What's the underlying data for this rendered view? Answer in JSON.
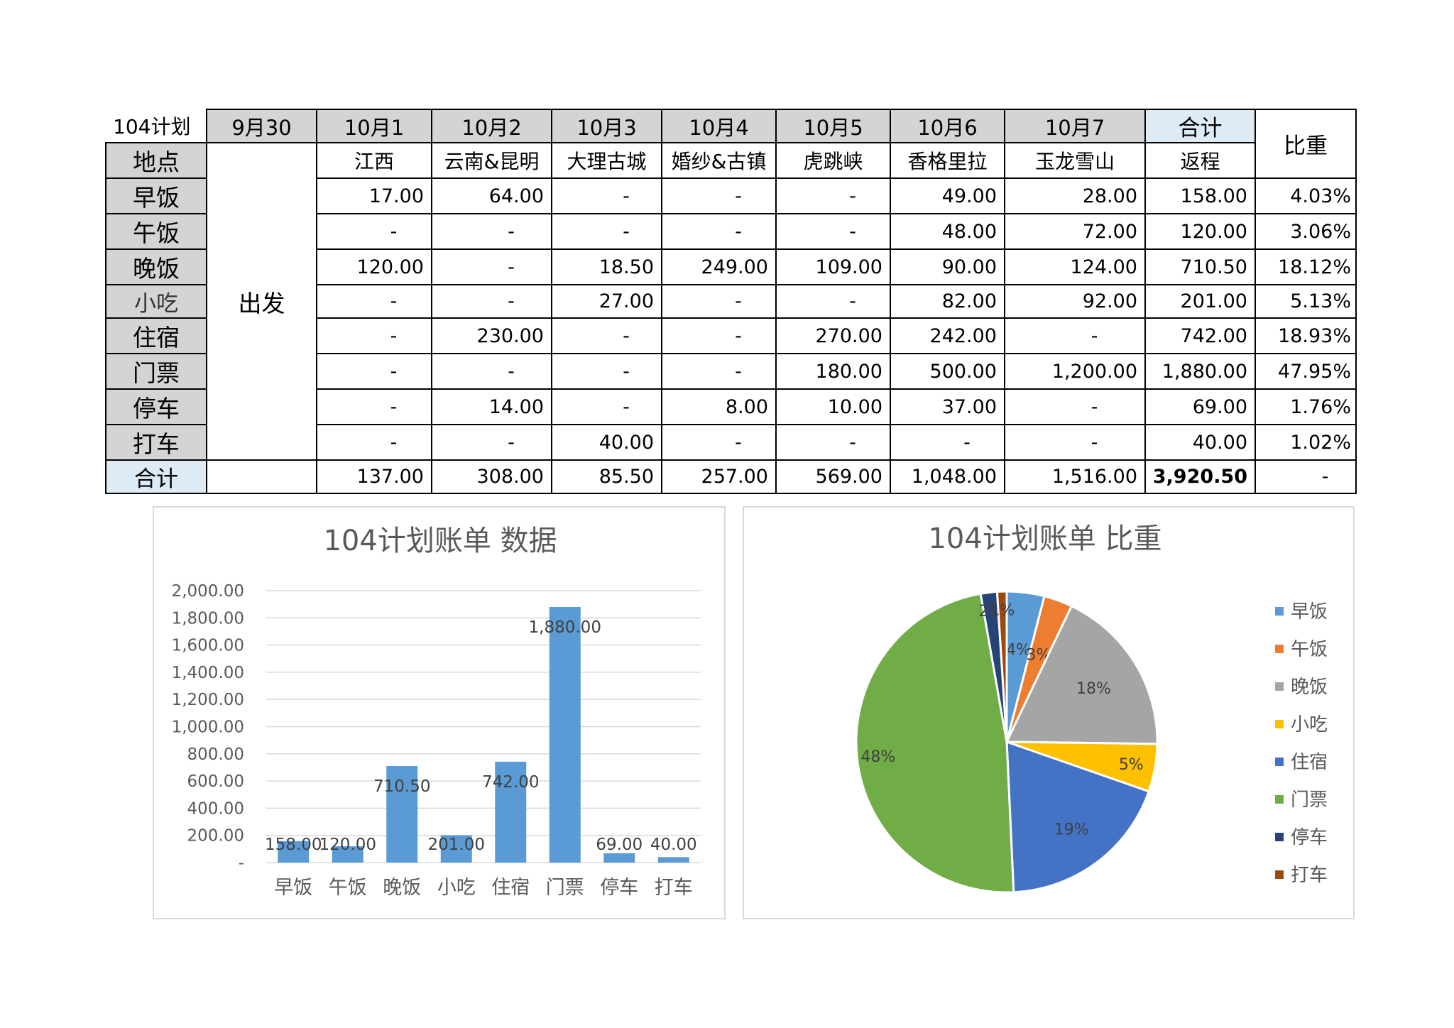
{
  "table": {
    "corner": "104计划",
    "dates": [
      "9月30",
      "10月1",
      "10月2",
      "10月3",
      "10月4",
      "10月5",
      "10月6",
      "10月7"
    ],
    "total_header": "合计",
    "ratio_header": "比重",
    "place_label": "地点",
    "depart": "出发",
    "places": [
      "江西",
      "云南&昆明",
      "大理古城",
      "婚纱&古镇",
      "虎跳峡",
      "香格里拉",
      "玉龙雪山"
    ],
    "return_label": "返程",
    "rows": [
      {
        "label": "早饭",
        "values": [
          "17.00",
          "64.00",
          "-",
          "-",
          "-",
          "49.00",
          "28.00"
        ],
        "total": "158.00",
        "ratio": "4.03%"
      },
      {
        "label": "午饭",
        "values": [
          "-",
          "-",
          "-",
          "-",
          "-",
          "48.00",
          "72.00"
        ],
        "total": "120.00",
        "ratio": "3.06%"
      },
      {
        "label": "晚饭",
        "values": [
          "120.00",
          "-",
          "18.50",
          "249.00",
          "109.00",
          "90.00",
          "124.00"
        ],
        "total": "710.50",
        "ratio": "18.12%"
      },
      {
        "label": "小吃",
        "values": [
          "-",
          "-",
          "27.00",
          "-",
          "-",
          "82.00",
          "92.00"
        ],
        "total": "201.00",
        "ratio": "5.13%"
      },
      {
        "label": "住宿",
        "values": [
          "-",
          "230.00",
          "-",
          "-",
          "270.00",
          "242.00",
          "-"
        ],
        "total": "742.00",
        "ratio": "18.93%"
      },
      {
        "label": "门票",
        "values": [
          "-",
          "-",
          "-",
          "-",
          "180.00",
          "500.00",
          "1,200.00"
        ],
        "total": "1,880.00",
        "ratio": "47.95%"
      },
      {
        "label": "停车",
        "values": [
          "-",
          "14.00",
          "-",
          "8.00",
          "10.00",
          "37.00",
          "-"
        ],
        "total": "69.00",
        "ratio": "1.76%"
      },
      {
        "label": "打车",
        "values": [
          "-",
          "-",
          "40.00",
          "-",
          "-",
          "-",
          "-"
        ],
        "total": "40.00",
        "ratio": "1.02%"
      }
    ],
    "totals_row": {
      "label": "合计",
      "values": [
        "137.00",
        "308.00",
        "85.50",
        "257.00",
        "569.00",
        "1,048.00",
        "1,516.00"
      ],
      "total": "3,920.50",
      "ratio": "-"
    }
  },
  "chart_data": [
    {
      "type": "bar",
      "title": "104计划账单 数据",
      "categories": [
        "早饭",
        "午饭",
        "晚饭",
        "小吃",
        "住宿",
        "门票",
        "停车",
        "打车"
      ],
      "values": [
        158.0,
        120.0,
        710.5,
        201.0,
        742.0,
        1880.0,
        69.0,
        40.0
      ],
      "value_labels": [
        "158.00",
        "120.00",
        "710.50",
        "201.00",
        "742.00",
        "1,880.00",
        "69.00",
        "40.00"
      ],
      "ylim": [
        0,
        2000
      ],
      "yticks": [
        "-",
        "200.00",
        "400.00",
        "600.00",
        "800.00",
        "1,000.00",
        "1,200.00",
        "1,400.00",
        "1,600.00",
        "1,800.00",
        "2,000.00"
      ],
      "color": "#5b9bd5",
      "grid": true
    },
    {
      "type": "pie",
      "title": "104计划账单 比重",
      "categories": [
        "早饭",
        "午饭",
        "晚饭",
        "小吃",
        "住宿",
        "门票",
        "停车",
        "打车"
      ],
      "values": [
        158.0,
        120.0,
        710.5,
        201.0,
        742.0,
        1880.0,
        69.0,
        40.0
      ],
      "labels": [
        "4%",
        "3%",
        "18%",
        "5%",
        "19%",
        "48%",
        "2%",
        "1%"
      ],
      "colors": [
        "#5b9bd5",
        "#ed7d31",
        "#a5a5a5",
        "#ffc000",
        "#4472c4",
        "#70ad47",
        "#264478",
        "#9e480e"
      ],
      "legend": "right"
    }
  ]
}
